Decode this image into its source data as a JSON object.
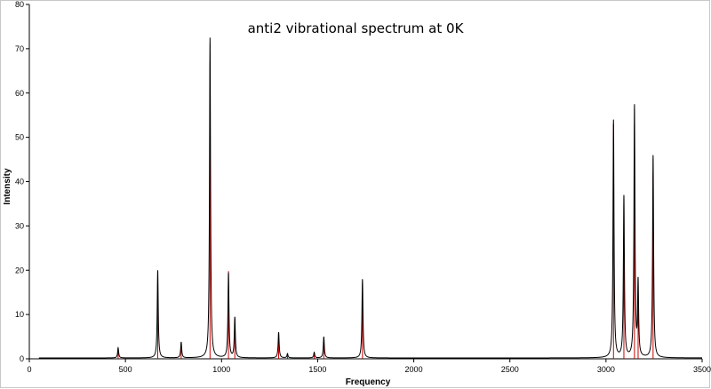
{
  "chart_data": {
    "type": "line",
    "title": "anti2 vibrational spectrum at 0K",
    "xlabel": "Frequency",
    "ylabel": "Intensity",
    "xlim": [
      0,
      3500
    ],
    "ylim": [
      0,
      80
    ],
    "x_ticks": [
      "0",
      "500",
      "1000",
      "1500",
      "2000",
      "2500",
      "3000",
      "3500"
    ],
    "y_ticks": [
      "0",
      "10",
      "20",
      "30",
      "40",
      "50",
      "60",
      "70",
      "80"
    ],
    "grid": false,
    "legend": "none",
    "series": [
      {
        "style": "line",
        "color": "#000000",
        "baseline": 0.2,
        "peaks": [
          {
            "x": 462,
            "y": 2.5
          },
          {
            "x": 668,
            "y": 20
          },
          {
            "x": 790,
            "y": 3.8
          },
          {
            "x": 940,
            "y": 72.5
          },
          {
            "x": 1036,
            "y": 19.5
          },
          {
            "x": 1069,
            "y": 9.5
          },
          {
            "x": 1297,
            "y": 6
          },
          {
            "x": 1343,
            "y": 1.2
          },
          {
            "x": 1482,
            "y": 1.5
          },
          {
            "x": 1532,
            "y": 5
          },
          {
            "x": 1733,
            "y": 18
          },
          {
            "x": 3039,
            "y": 54
          },
          {
            "x": 3093,
            "y": 37
          },
          {
            "x": 3148,
            "y": 57.5
          },
          {
            "x": 3167,
            "y": 18.5
          },
          {
            "x": 3245,
            "y": 46
          }
        ]
      },
      {
        "style": "stick",
        "color": "#cc0000",
        "sticks": [
          {
            "x": 462,
            "y": 2.3
          },
          {
            "x": 668,
            "y": 18
          },
          {
            "x": 790,
            "y": 3.5
          },
          {
            "x": 940,
            "y": 67
          },
          {
            "x": 1036,
            "y": 19.8
          },
          {
            "x": 1069,
            "y": 9
          },
          {
            "x": 1297,
            "y": 5.5
          },
          {
            "x": 1343,
            "y": 1
          },
          {
            "x": 1482,
            "y": 1.2
          },
          {
            "x": 1532,
            "y": 4.5
          },
          {
            "x": 1733,
            "y": 17
          },
          {
            "x": 3039,
            "y": 53
          },
          {
            "x": 3093,
            "y": 35
          },
          {
            "x": 3148,
            "y": 53
          },
          {
            "x": 3167,
            "y": 17
          },
          {
            "x": 3245,
            "y": 42
          }
        ]
      }
    ],
    "colors": {
      "background": "#ffffff",
      "axis": "#000000",
      "frame": "#c8c8c8"
    }
  }
}
